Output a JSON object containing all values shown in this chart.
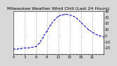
{
  "title": "Milwaukee Weather Wind Chill (Last 24 Hours)",
  "x_values": [
    0,
    1,
    2,
    3,
    4,
    5,
    6,
    7,
    8,
    9,
    10,
    11,
    12,
    13,
    14,
    15,
    16,
    17,
    18,
    19,
    20,
    21,
    22,
    23,
    24
  ],
  "y_values": [
    -22,
    -22,
    -21,
    -20,
    -20,
    -19,
    -18,
    -12,
    -2,
    8,
    18,
    26,
    32,
    34,
    35,
    34,
    32,
    28,
    22,
    16,
    10,
    6,
    2,
    0,
    -2
  ],
  "line_color": "#0000cc",
  "bg_color": "#d8d8d8",
  "plot_bg_color": "#ffffff",
  "grid_color": "#888888",
  "ylim": [
    -30,
    40
  ],
  "yticks": [
    -20,
    -10,
    0,
    10,
    20,
    30,
    40
  ],
  "ytick_labels": [
    "-20",
    "-10",
    "0",
    "10",
    "20",
    "30",
    "40"
  ],
  "title_fontsize": 4.5,
  "tick_fontsize": 3.5,
  "vgrid_positions": [
    3,
    6,
    9,
    12,
    15,
    18,
    21
  ]
}
